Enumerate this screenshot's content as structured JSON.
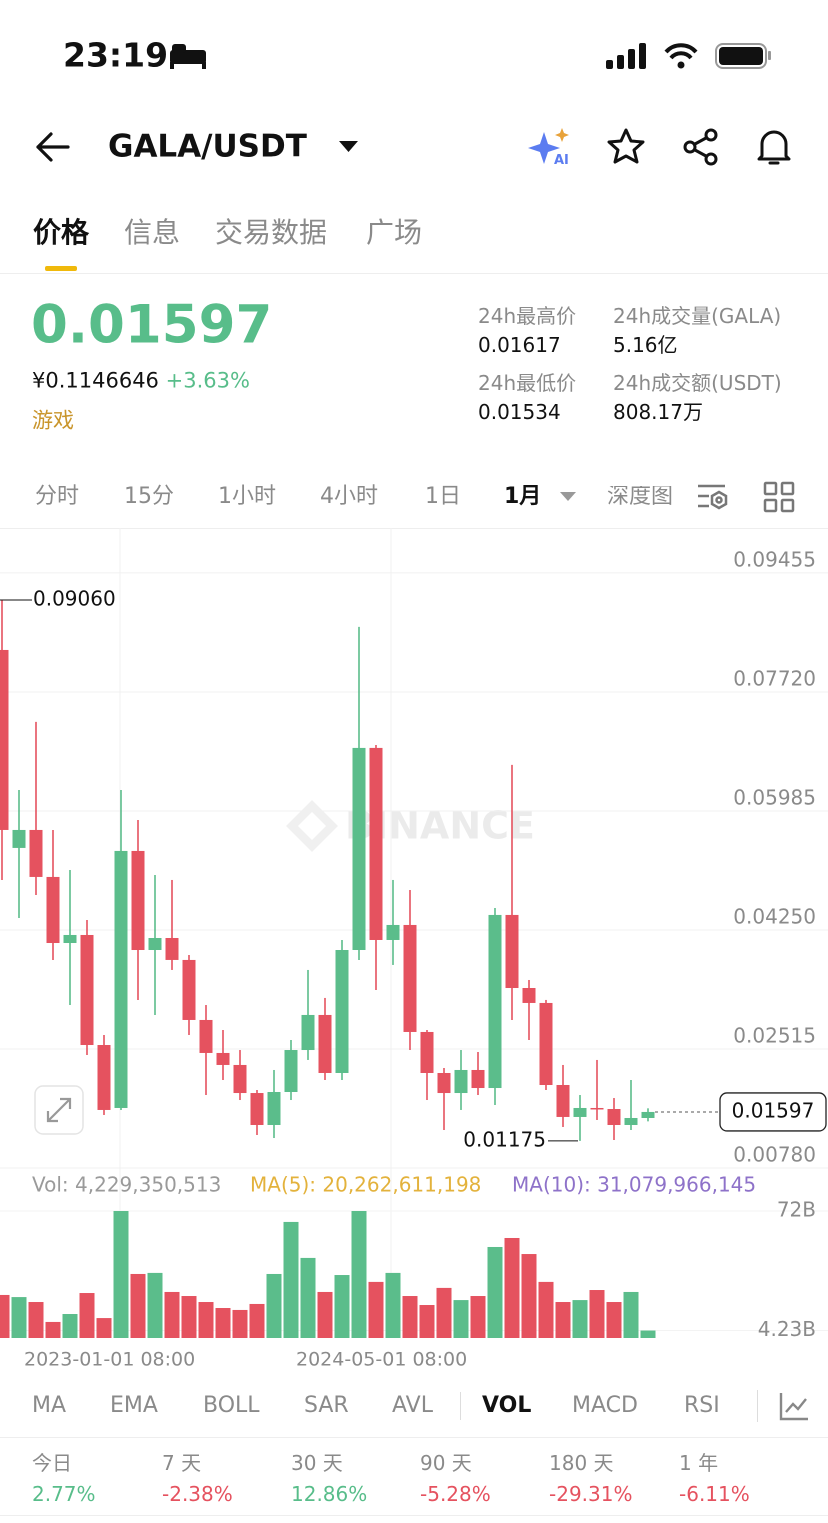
{
  "status_bar": {
    "time": "23:19"
  },
  "header": {
    "title": "GALA/USDT"
  },
  "tabs": [
    "价格",
    "信息",
    "交易数据",
    "广场"
  ],
  "ticker": {
    "price": "0.01597",
    "cny_price": "¥0.1146646",
    "change": "+3.63%",
    "tag": "游戏",
    "stats": [
      {
        "label": "24h最高价",
        "value": "0.01617"
      },
      {
        "label": "24h成交量(GALA)",
        "value": "5.16亿"
      },
      {
        "label": "24h最低价",
        "value": "0.01534"
      },
      {
        "label": "24h成交额(USDT)",
        "value": "808.17万"
      }
    ]
  },
  "intervals": [
    "分时",
    "15分",
    "1小时",
    "4小时",
    "1日",
    "1月",
    "深度图"
  ],
  "chart": {
    "type": "candlestick",
    "watermark": "BINANCE",
    "ylim": [
      0.0078,
      0.1011
    ],
    "yticks": [
      0.09455,
      {
        "value": 0.0772,
        "label": "0.07720"
      },
      0.05985,
      {
        "value": 0.0425,
        "label": "0.04250"
      },
      0.02515,
      {
        "value": 0.0078,
        "label": "0.00780"
      }
    ],
    "up_color": "#5bbd8b",
    "down_color": "#e5525f",
    "open": [
      0.08332,
      0.05446,
      0.05708,
      0.05023,
      0.0406,
      0.04177,
      0.02573,
      0.01655,
      0.05402,
      0.03958,
      0.04133,
      0.03813,
      0.02938,
      0.02457,
      0.02282,
      0.01873,
      0.01407,
      0.01888,
      0.025,
      0.03011,
      0.02165,
      0.03958,
      0.06904,
      0.04104,
      0.04323,
      0.02763,
      0.02165,
      0.01873,
      0.02209,
      0.01946,
      0.04469,
      0.03404,
      0.03186,
      0.0199,
      0.01524,
      0.01655,
      0.0164,
      0.01407,
      0.01509
    ],
    "high": [
      0.0906,
      0.06291,
      0.07283,
      0.05708,
      0.05125,
      0.04396,
      0.02719,
      0.06291,
      0.05854,
      0.05052,
      0.04979,
      0.03885,
      0.03156,
      0.02792,
      0.025,
      0.01917,
      0.02209,
      0.02646,
      0.03667,
      0.03259,
      0.04104,
      0.08668,
      0.06947,
      0.04979,
      0.04833,
      0.02792,
      0.02238,
      0.025,
      0.02471,
      0.04571,
      0.06656,
      0.03521,
      0.0323,
      0.02282,
      0.01844,
      0.02355,
      0.018,
      0.02063,
      0.0165
    ],
    "low": [
      0.04979,
      0.04425,
      0.0476,
      0.03813,
      0.03156,
      0.02427,
      0.01553,
      0.01626,
      0.0323,
      0.03011,
      0.03667,
      0.02719,
      0.01844,
      0.02063,
      0.01771,
      0.01261,
      0.01217,
      0.01771,
      0.02355,
      0.02063,
      0.02063,
      0.03813,
      0.03375,
      0.0374,
      0.025,
      0.01771,
      0.01334,
      0.01626,
      0.01844,
      0.01698,
      0.02938,
      0.02646,
      0.01917,
      0.01378,
      0.01175,
      0.0148,
      0.01188,
      0.01334,
      0.0146
    ],
    "close": [
      0.05708,
      0.05708,
      0.05023,
      0.0406,
      0.04177,
      0.02573,
      0.01626,
      0.05402,
      0.03958,
      0.04133,
      0.03813,
      0.02938,
      0.02457,
      0.02282,
      0.01873,
      0.01407,
      0.01888,
      0.025,
      0.03011,
      0.02165,
      0.03958,
      0.06904,
      0.04104,
      0.04323,
      0.02763,
      0.02165,
      0.01873,
      0.02209,
      0.01946,
      0.04469,
      0.03404,
      0.03186,
      0.0199,
      0.01524,
      0.01655,
      0.0164,
      0.01407,
      0.01509,
      0.01597
    ],
    "max_label": {
      "value": 0.0906,
      "label": "0.09060"
    },
    "min_label": 0.01175,
    "last_price": 0.01597,
    "x_labels": [
      "2023-01-01 08:00",
      "2024-05-01 08:00"
    ],
    "volume": {
      "values": [
        24400000000,
        23200000000,
        20400000000,
        9100000000,
        13600000000,
        25500000000,
        11300000000,
        72000000000,
        36300000000,
        36900000000,
        26100000000,
        23800000000,
        20400000000,
        17000000000,
        15900000000,
        19300000000,
        36300000000,
        65800000000,
        45400000000,
        26100000000,
        35700000000,
        72000000000,
        31800000000,
        36900000000,
        23800000000,
        18700000000,
        28400000000,
        21500000000,
        23800000000,
        51600000000,
        56700000000,
        47600000000,
        31800000000,
        20400000000,
        21500000000,
        27200000000,
        20400000000,
        26100000000,
        4229350513
      ],
      "ylim": [
        0,
        72000000000
      ],
      "yticks": [
        {
          "value": 72000000000,
          "label": "72B"
        },
        {
          "value": 4230000000,
          "label": "4.23B"
        }
      ],
      "legend": [
        {
          "text": "Vol: 4,229,350,513",
          "color": "#9a9a9a"
        },
        {
          "text": "MA(5): 20,262,611,198",
          "color": "#e3b23c"
        },
        {
          "text": "MA(10): 31,079,966,145",
          "color": "#8e72c9"
        }
      ]
    }
  },
  "indicators": [
    "MA",
    "EMA",
    "BOLL",
    "SAR",
    "AVL",
    "VOL",
    "MACD",
    "RSI"
  ],
  "performance": [
    {
      "label": "今日",
      "value": "2.77%"
    },
    {
      "label": "7 天",
      "value": "-2.38%"
    },
    {
      "label": "30 天",
      "value": "12.86%"
    },
    {
      "label": "90 天",
      "value": "-5.28%"
    },
    {
      "label": "180 天",
      "value": "-29.31%"
    },
    {
      "label": "1 年",
      "value": "-6.11%"
    }
  ]
}
